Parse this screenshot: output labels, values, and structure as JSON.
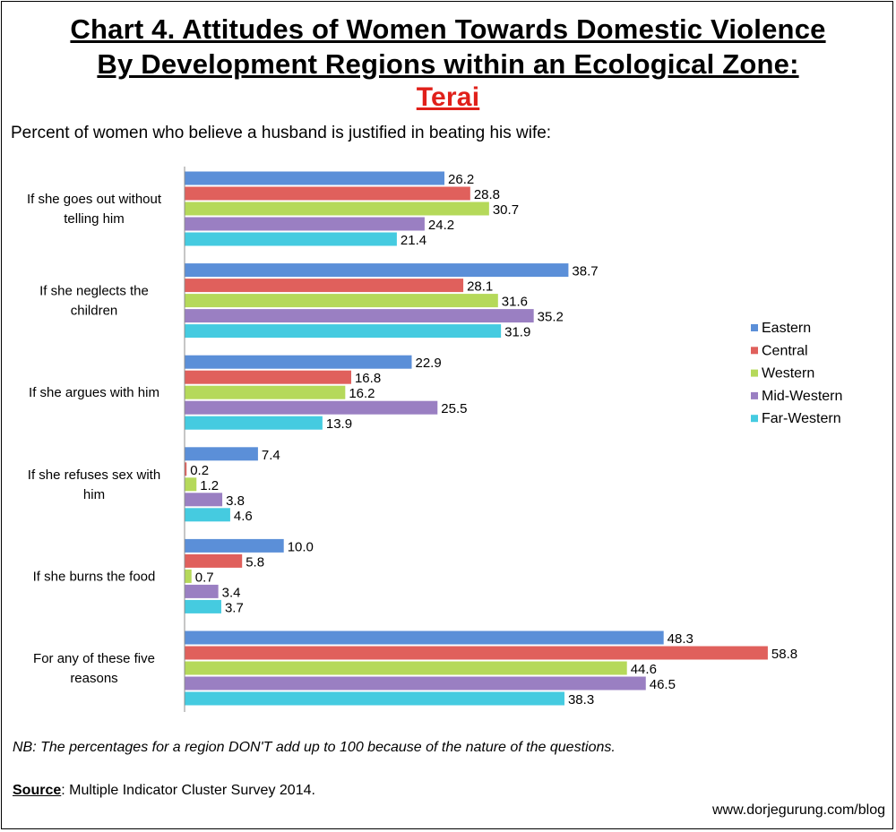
{
  "title_line1": "Chart 4. Attitudes of Women Towards Domestic Violence",
  "title_line2": "By Development Regions within an Ecological Zone:",
  "title_line3": "Terai",
  "subtitle": "Percent of women who believe a husband is justified in beating his wife:",
  "note": "NB: The percentages for a region DON'T add up to 100 because of the nature of the questions.",
  "source_label": "Source",
  "source_text": ": Multiple Indicator Cluster Survey 2014.",
  "url": "www.dorjegurung.com/blog",
  "chart_data": {
    "type": "bar",
    "orientation": "horizontal",
    "categories": [
      [
        "If she goes out without",
        "telling him"
      ],
      [
        "If she neglects the",
        "children"
      ],
      [
        "If she argues with him"
      ],
      [
        "If she refuses sex with",
        "him"
      ],
      [
        "If she burns the food"
      ],
      [
        "For any of these five",
        "reasons"
      ]
    ],
    "series": [
      {
        "name": "Eastern",
        "color": "#5b8fd8",
        "values": [
          26.2,
          38.7,
          22.9,
          7.4,
          10.0,
          48.3
        ]
      },
      {
        "name": "Central",
        "color": "#e0605c",
        "values": [
          28.8,
          28.1,
          16.8,
          0.2,
          5.8,
          58.8
        ]
      },
      {
        "name": "Western",
        "color": "#b5d95a",
        "values": [
          30.7,
          31.6,
          16.2,
          1.2,
          0.7,
          44.6
        ]
      },
      {
        "name": "Mid-Western",
        "color": "#9a7fc2",
        "values": [
          24.2,
          35.2,
          25.5,
          3.8,
          3.4,
          46.5
        ]
      },
      {
        "name": "Far-Western",
        "color": "#45cbe0",
        "values": [
          21.4,
          31.9,
          13.9,
          4.6,
          3.7,
          38.3
        ]
      }
    ],
    "legend_position": "right",
    "grid": false,
    "xlim": [
      0,
      70
    ]
  }
}
